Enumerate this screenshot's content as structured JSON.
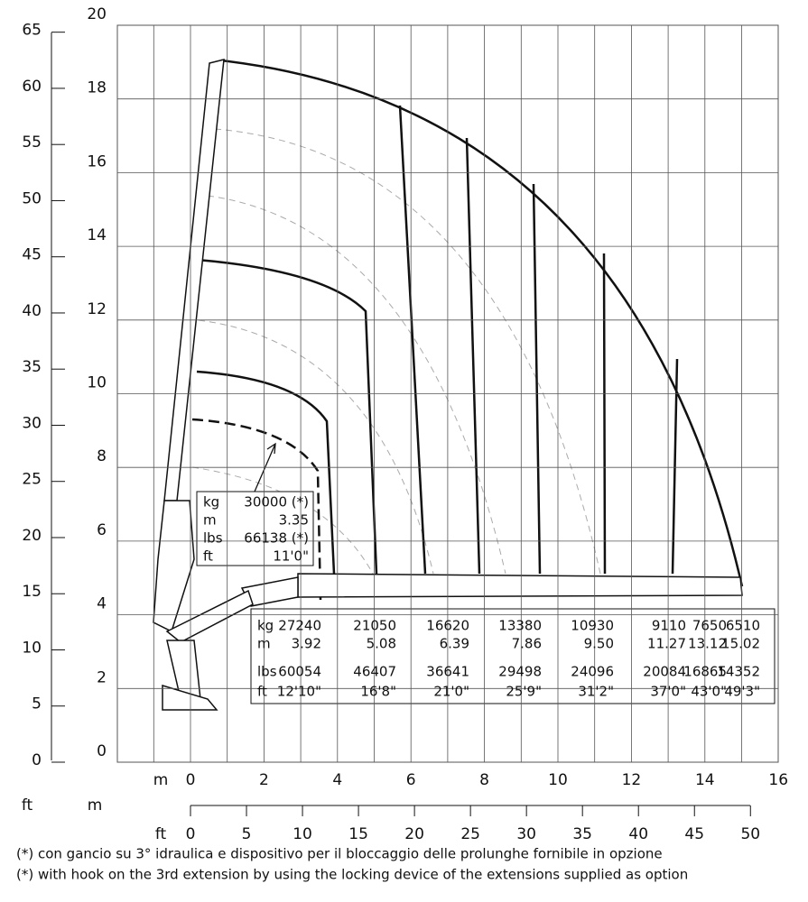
{
  "left_axis_ft": {
    "ticks": [
      0,
      5,
      10,
      15,
      20,
      25,
      30,
      35,
      40,
      45,
      50,
      55,
      60,
      65
    ]
  },
  "left_axis_m": {
    "ticks": [
      0,
      2,
      4,
      6,
      8,
      10,
      12,
      14,
      16,
      18,
      20
    ]
  },
  "left_unit_ft": "ft",
  "left_unit_m": "m",
  "bottom_axis_m": {
    "label": "m",
    "ticks": [
      0,
      2,
      4,
      6,
      8,
      10,
      12,
      14,
      16
    ]
  },
  "bottom_axis_ft": {
    "label": "ft",
    "ticks": [
      0,
      5,
      10,
      15,
      20,
      25,
      30,
      35,
      40,
      45,
      50
    ]
  },
  "callout": {
    "rows": [
      [
        "kg",
        "30000 (*)"
      ],
      [
        "m",
        "3.35"
      ],
      [
        "lbs",
        "66138 (*)"
      ],
      [
        "ft",
        "11'0\""
      ]
    ]
  },
  "table": {
    "rows": [
      {
        "unit": "kg",
        "values": [
          "27240",
          "21050",
          "16620",
          "13380",
          "10930",
          "9110",
          "7650",
          "6510"
        ]
      },
      {
        "unit": "m",
        "values": [
          "3.92",
          "5.08",
          "6.39",
          "7.86",
          "9.50",
          "11.27",
          "13.12",
          "15.02"
        ]
      },
      {
        "unit": "lbs",
        "values": [
          "60054",
          "46407",
          "36641",
          "29498",
          "24096",
          "20084",
          "16865",
          "14352"
        ]
      },
      {
        "unit": "ft",
        "values": [
          "12'10\"",
          "16'8\"",
          "21'0\"",
          "25'9\"",
          "31'2\"",
          "37'0\"",
          "43'0\"",
          "49'3\""
        ]
      }
    ]
  },
  "footnotes": [
    "(*) con gancio su 3° idraulica e dispositivo per il bloccaggio delle prolunghe fornibile in opzione",
    "(*) with hook on the 3rd extension by using the locking device of the extensions supplied as option"
  ]
}
